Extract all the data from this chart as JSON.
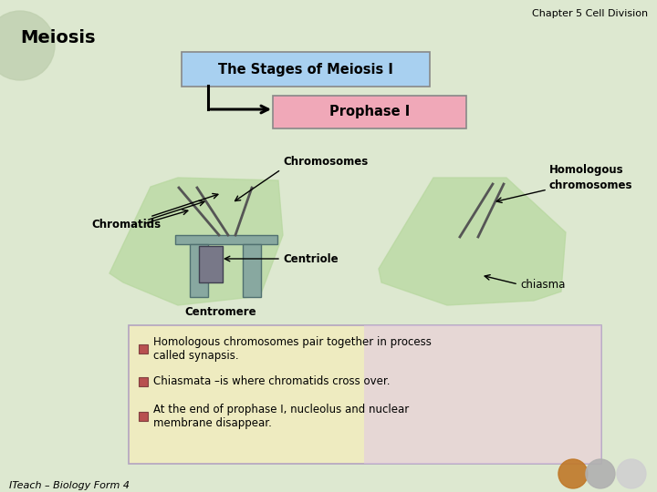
{
  "bg_color": "#dde8d0",
  "title_header": "Chapter 5 Cell Division",
  "main_title": "Meiosis",
  "box1_text": "The Stages of Meiosis I",
  "box1_color": "#a8d0f0",
  "box2_text": "Prophase I",
  "box2_color": "#f0a8b8",
  "label_chromosomes": "Chromosomes",
  "label_chromatids": "Chromatids",
  "label_centriole": "Centriole",
  "label_centromere": "Centromere",
  "label_homologous": "Homologous\nchromosomes",
  "label_chiasma": "chiasma",
  "bullet1": "Homologous chromosomes pair together in process\ncalled synapsis.",
  "bullet2": "Chiasmata –is where chromatids cross over.",
  "bullet3": "At the end of prophase I, nucleolus and nuclear\nmembrane disappear.",
  "bullet_box_color": "#f0ecc0",
  "bullet_box_color2": "#e0c8e8",
  "footer": "ITeach – Biology Form 4",
  "cell_green": "#b8d8a0",
  "table_color": "#88a8a0",
  "centriole_color": "#787888"
}
